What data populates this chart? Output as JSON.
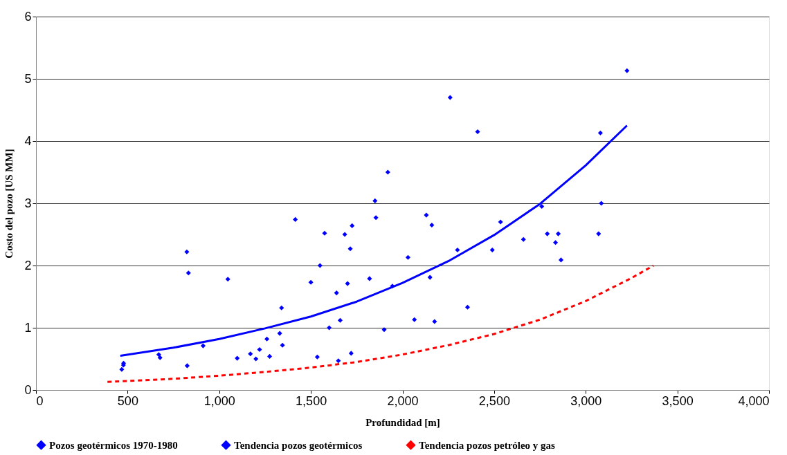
{
  "chart_data": {
    "type": "scatter",
    "xlabel": "Profundidad [m]",
    "ylabel": "Costo del pozo [US MM]",
    "xlim": [
      0,
      4000
    ],
    "ylim": [
      0,
      6
    ],
    "xticks": [
      0,
      500,
      {
        "value": 1000,
        "label": "1,000"
      },
      {
        "value": 1500,
        "label": "1,500"
      },
      {
        "value": 2000,
        "label": "2,000"
      },
      {
        "value": 2500,
        "label": "2,500"
      },
      {
        "value": 3000,
        "label": "3,000"
      },
      {
        "value": 3500,
        "label": "3,500"
      },
      {
        "value": 4000,
        "label": "4,000"
      }
    ],
    "yticks": [
      0,
      1,
      2,
      3,
      4,
      5,
      6
    ],
    "grid": "y",
    "legend": "bottom",
    "series": [
      {
        "name": "Pozos geotérmicos 1970-1980",
        "color": "#0000ff",
        "marker": "diamond",
        "x": [
          468,
          477,
          478,
          670,
          677,
          823,
          825,
          832,
          912,
          1047,
          1098,
          1170,
          1200,
          1220,
          1260,
          1275,
          1330,
          1340,
          1345,
          1415,
          1500,
          1535,
          1550,
          1575,
          1600,
          1640,
          1650,
          1660,
          1685,
          1700,
          1715,
          1720,
          1725,
          1820,
          1850,
          1855,
          1900,
          1920,
          1945,
          2030,
          2065,
          2130,
          2150,
          2160,
          2175,
          2260,
          2300,
          2355,
          2410,
          2490,
          2535,
          2660,
          2760,
          2790,
          2835,
          2850,
          2865,
          3070,
          3080,
          3085,
          3225
        ],
        "values": [
          0.33,
          0.4,
          0.43,
          0.57,
          0.52,
          2.22,
          0.39,
          1.88,
          0.71,
          1.78,
          0.51,
          0.58,
          0.5,
          0.65,
          0.82,
          0.54,
          0.91,
          1.32,
          0.72,
          2.74,
          1.73,
          0.53,
          2.0,
          2.52,
          1.0,
          1.56,
          0.47,
          1.12,
          2.5,
          1.71,
          2.27,
          0.59,
          2.64,
          1.79,
          3.04,
          2.77,
          0.97,
          3.5,
          1.67,
          2.13,
          1.13,
          2.81,
          1.81,
          2.65,
          1.1,
          4.7,
          2.25,
          1.33,
          4.15,
          2.25,
          2.7,
          2.42,
          2.95,
          2.51,
          2.37,
          2.51,
          2.09,
          2.51,
          4.13,
          3.0,
          5.13
        ]
      },
      {
        "name": "Tendencia pozos geotérmicos",
        "type": "line",
        "color": "#0000ff",
        "line_style": "solid",
        "x": [
          460,
          750,
          1000,
          1250,
          1500,
          1750,
          2000,
          2250,
          2500,
          2750,
          3000,
          3225
        ],
        "values": [
          0.55,
          0.68,
          0.82,
          0.99,
          1.18,
          1.42,
          1.72,
          2.07,
          2.49,
          2.99,
          3.61,
          4.25
        ]
      },
      {
        "name": "Tendencia pozos petróleo y gas",
        "type": "line",
        "color": "#ff0000",
        "line_style": "dashed",
        "x": [
          390,
          750,
          1000,
          1250,
          1500,
          1750,
          2000,
          2250,
          2500,
          2750,
          3000,
          3250,
          3370
        ],
        "values": [
          0.13,
          0.18,
          0.23,
          0.29,
          0.36,
          0.45,
          0.57,
          0.72,
          0.9,
          1.13,
          1.43,
          1.8,
          2.0
        ]
      }
    ]
  }
}
